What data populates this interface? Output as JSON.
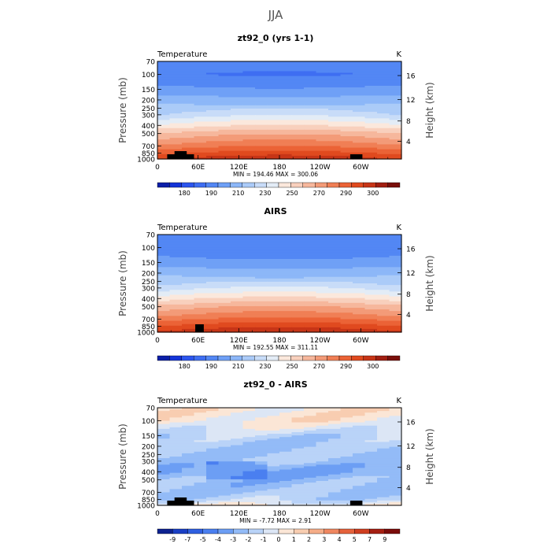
{
  "page_title": "JJA",
  "axis_text": {
    "left_label": "Pressure (mb)",
    "right_label": "Height (km)",
    "x_ticks": [
      "0",
      "60E",
      "120E",
      "180",
      "120W",
      "60W"
    ],
    "p_ticks": [
      "70",
      "100",
      "150",
      "200",
      "250",
      "300",
      "400",
      "500",
      "700",
      "850",
      "1000"
    ],
    "h_ticks": [
      "16",
      "12",
      "8",
      "4"
    ]
  },
  "colors": {
    "temperature": [
      "#0b1fa8",
      "#1434d8",
      "#2c55ee",
      "#3e6ef2",
      "#5387f4",
      "#6fa0f6",
      "#8cb7f8",
      "#abcbf8",
      "#c8dcf8",
      "#e3ecf6",
      "#fbe8dc",
      "#f8d0bd",
      "#f6b79c",
      "#f39b78",
      "#f07f55",
      "#eb6336",
      "#e04a1f",
      "#c73517",
      "#a11f11",
      "#7a0f0a"
    ],
    "difference": [
      "#0d2290",
      "#1a3fc4",
      "#2f5fe0",
      "#4a7ff0",
      "#6c9ef4",
      "#93bbf7",
      "#b9d3f8",
      "#dce6f5",
      "#fbe6d6",
      "#f8cdb1",
      "#f5ad88",
      "#ef8760",
      "#e5623c",
      "#cf3f20",
      "#a51f12",
      "#7a0b0a"
    ]
  },
  "chart_data": [
    {
      "type": "heatmap",
      "title": "zt92_0 (yrs 1-1)",
      "left_string": "Temperature",
      "units": "K",
      "stats": "MIN = 194.46   MAX = 300.06",
      "min": 194.46,
      "max": 300.06,
      "pressure_levels": [
        70,
        100,
        150,
        200,
        250,
        300,
        400,
        500,
        700,
        850,
        1000
      ],
      "mean_profile_K": [
        206,
        202,
        210,
        218,
        224,
        230,
        244,
        256,
        270,
        280,
        288
      ],
      "colorbar_labels": [
        "180",
        "190",
        "210",
        "230",
        "250",
        "270",
        "290",
        "300"
      ]
    },
    {
      "type": "heatmap",
      "title": "AIRS",
      "left_string": "Temperature",
      "units": "K",
      "stats": "MIN = 192.55   MAX = 311.11",
      "min": 192.55,
      "max": 311.11,
      "pressure_levels": [
        70,
        100,
        150,
        200,
        250,
        300,
        400,
        500,
        700,
        850,
        1000
      ],
      "mean_profile_K": [
        207,
        203,
        211,
        219,
        225,
        232,
        246,
        258,
        272,
        282,
        290
      ],
      "colorbar_labels": [
        "180",
        "190",
        "210",
        "230",
        "250",
        "270",
        "290",
        "300"
      ]
    },
    {
      "type": "heatmap",
      "title": "zt92_0 - AIRS",
      "left_string": "Temperature",
      "units": "K",
      "stats": "MIN =  -7.72   MAX =   2.91",
      "min": -7.72,
      "max": 2.91,
      "pressure_levels": [
        70,
        100,
        150,
        200,
        250,
        300,
        400,
        500,
        700,
        850,
        1000
      ],
      "mean_profile_K": [
        0.5,
        0.5,
        -1.5,
        -2,
        -2,
        -2,
        -3,
        -2.5,
        -2,
        -1.5,
        0
      ],
      "colorbar_labels": [
        "-9",
        "-7",
        "-5",
        "-4",
        "-3",
        "-2",
        "-1",
        "0",
        "1",
        "2",
        "3",
        "4",
        "5",
        "7",
        "9"
      ]
    }
  ]
}
